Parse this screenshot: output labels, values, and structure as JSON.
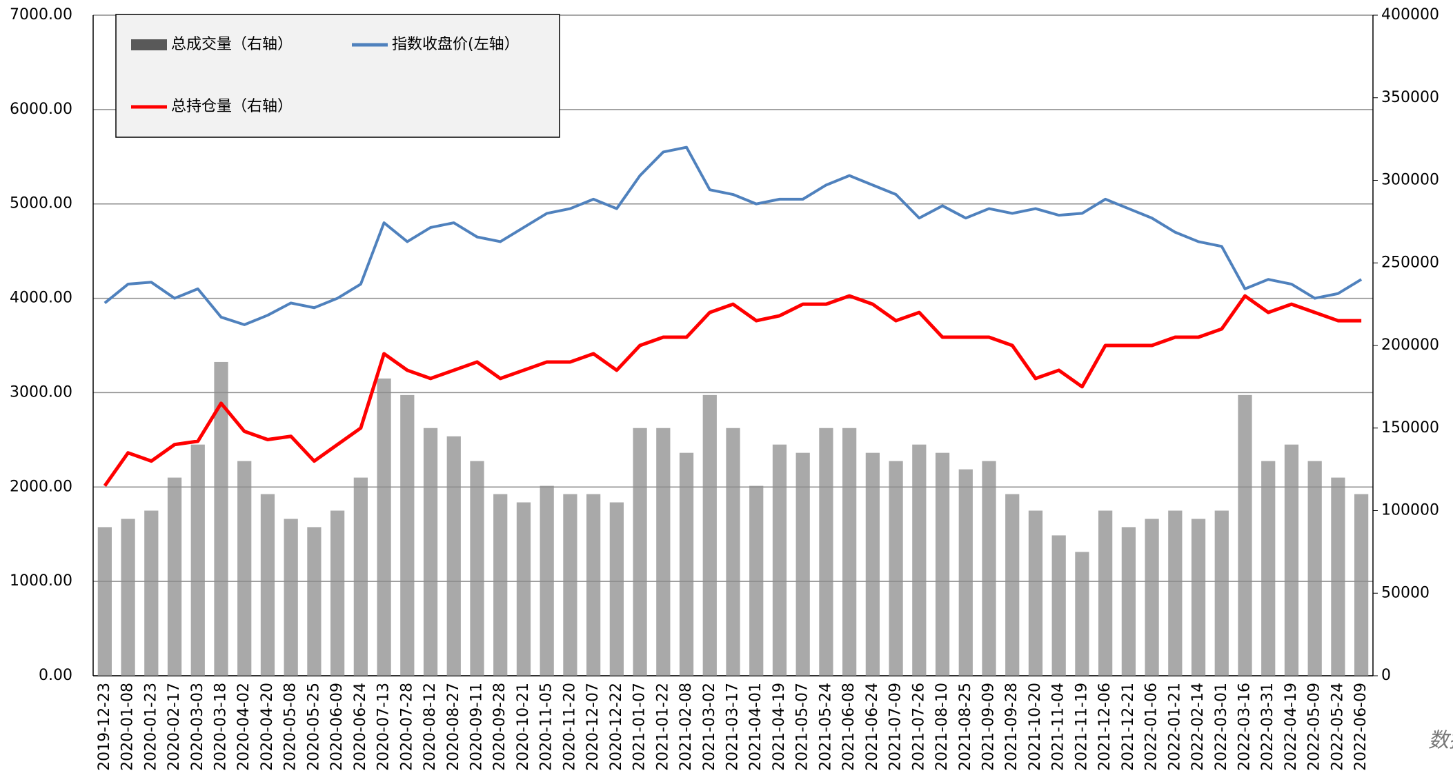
{
  "chart_data": {
    "type": "combo",
    "categories": [
      "2019-12-23",
      "2020-01-08",
      "2020-01-23",
      "2020-02-17",
      "2020-03-03",
      "2020-03-18",
      "2020-04-02",
      "2020-04-20",
      "2020-05-08",
      "2020-05-25",
      "2020-06-09",
      "2020-06-24",
      "2020-07-13",
      "2020-07-28",
      "2020-08-12",
      "2020-08-27",
      "2020-09-11",
      "2020-09-28",
      "2020-10-21",
      "2020-11-05",
      "2020-11-20",
      "2020-12-07",
      "2020-12-22",
      "2021-01-07",
      "2021-01-22",
      "2021-02-08",
      "2021-03-02",
      "2021-03-17",
      "2021-04-01",
      "2021-04-19",
      "2021-05-07",
      "2021-05-24",
      "2021-06-08",
      "2021-06-24",
      "2021-07-09",
      "2021-07-26",
      "2021-08-10",
      "2021-08-25",
      "2021-09-09",
      "2021-09-28",
      "2021-10-20",
      "2021-11-04",
      "2021-11-19",
      "2021-12-06",
      "2021-12-21",
      "2022-01-06",
      "2022-01-21",
      "2022-02-14",
      "2022-03-01",
      "2022-03-16",
      "2022-03-31",
      "2022-04-19",
      "2022-05-09",
      "2022-05-24",
      "2022-06-09"
    ],
    "series": [
      {
        "name": "总成交量（右轴）",
        "type": "bar",
        "axis": "y2",
        "color": "#8c8c8c",
        "values": [
          90000,
          95000,
          100000,
          120000,
          140000,
          190000,
          130000,
          110000,
          95000,
          90000,
          100000,
          120000,
          180000,
          170000,
          150000,
          145000,
          130000,
          110000,
          105000,
          115000,
          110000,
          110000,
          105000,
          150000,
          150000,
          135000,
          170000,
          150000,
          115000,
          140000,
          135000,
          150000,
          150000,
          135000,
          130000,
          140000,
          135000,
          125000,
          130000,
          110000,
          100000,
          85000,
          75000,
          100000,
          90000,
          95000,
          100000,
          95000,
          100000,
          170000,
          130000,
          140000,
          130000,
          120000,
          110000
        ]
      },
      {
        "name": "指数收盘价(左轴）",
        "type": "line",
        "axis": "y",
        "color": "#4f81bd",
        "values": [
          3950,
          4150,
          4170,
          4000,
          4100,
          3800,
          3720,
          3820,
          3950,
          3900,
          4000,
          4150,
          4800,
          4600,
          4750,
          4800,
          4650,
          4600,
          4750,
          4900,
          4950,
          5050,
          4950,
          5300,
          5550,
          5600,
          5150,
          5100,
          5000,
          5050,
          5050,
          5200,
          5300,
          5200,
          5100,
          4850,
          4980,
          4850,
          4950,
          4900,
          4950,
          4880,
          4900,
          5050,
          4950,
          4850,
          4700,
          4600,
          4550,
          4100,
          4200,
          4150,
          4000,
          4050,
          4200
        ]
      },
      {
        "name": "总持仓量（右轴）",
        "type": "line",
        "axis": "y2",
        "color": "#ff0000",
        "values": [
          115000,
          135000,
          130000,
          140000,
          142000,
          165000,
          148000,
          143000,
          145000,
          130000,
          140000,
          150000,
          195000,
          185000,
          180000,
          185000,
          190000,
          180000,
          185000,
          190000,
          190000,
          195000,
          185000,
          200000,
          205000,
          205000,
          220000,
          225000,
          215000,
          218000,
          225000,
          225000,
          230000,
          225000,
          215000,
          220000,
          205000,
          205000,
          205000,
          200000,
          180000,
          185000,
          175000,
          200000,
          200000,
          200000,
          205000,
          205000,
          210000,
          230000,
          220000,
          225000,
          220000,
          215000,
          215000
        ]
      }
    ],
    "ylim": [
      0,
      7000
    ],
    "yticks": [
      {
        "value": 0,
        "label": "0.00"
      },
      {
        "value": 1000,
        "label": "1000.00"
      },
      {
        "value": 2000,
        "label": "2000.00"
      },
      {
        "value": 3000,
        "label": "3000.00"
      },
      {
        "value": 4000,
        "label": "4000.00"
      },
      {
        "value": 5000,
        "label": "5000.00"
      },
      {
        "value": 6000,
        "label": "6000.00"
      },
      {
        "value": 7000,
        "label": "7000.00"
      }
    ],
    "y2lim": [
      0,
      400000
    ],
    "y2ticks": [
      0,
      50000,
      100000,
      150000,
      200000,
      250000,
      300000,
      350000,
      400000
    ],
    "grid": true,
    "legend": "top-left",
    "watermark": "数据"
  }
}
